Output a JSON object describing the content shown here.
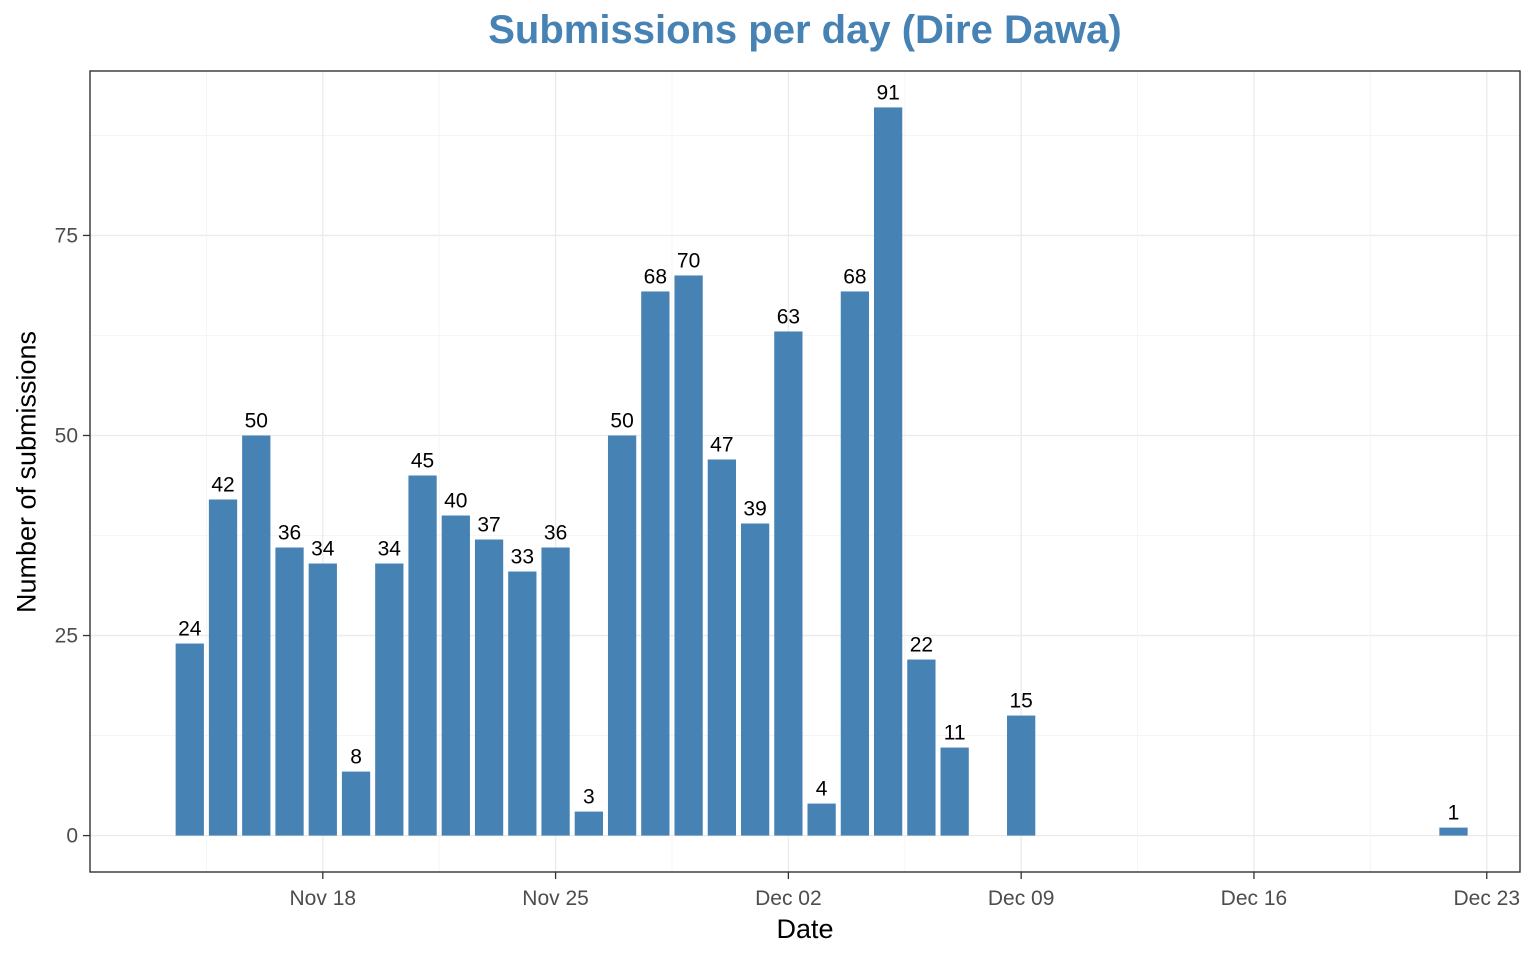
{
  "chart_data": {
    "type": "bar",
    "title": "Submissions per day (Dire Dawa)",
    "xlabel": "Date",
    "ylabel": "Number of submissions",
    "bar_color": "#4682B4",
    "title_color": "#4682B4",
    "grid": true,
    "legend": "none",
    "x_axis_type": "date",
    "xlim": [
      "2024-11-11",
      "2024-12-24"
    ],
    "ylim": [
      -4.55,
      95.55
    ],
    "x_ticks": [
      {
        "date": "2024-11-18",
        "label": "Nov 18"
      },
      {
        "date": "2024-11-25",
        "label": "Nov 25"
      },
      {
        "date": "2024-12-02",
        "label": "Dec 02"
      },
      {
        "date": "2024-12-09",
        "label": "Dec 09"
      },
      {
        "date": "2024-12-16",
        "label": "Dec 16"
      },
      {
        "date": "2024-12-23",
        "label": "Dec 23"
      }
    ],
    "y_ticks": [
      0,
      25,
      50,
      75
    ],
    "points": [
      {
        "date": "2024-11-14",
        "value": 24
      },
      {
        "date": "2024-11-15",
        "value": 42
      },
      {
        "date": "2024-11-16",
        "value": 50
      },
      {
        "date": "2024-11-17",
        "value": 36
      },
      {
        "date": "2024-11-18",
        "value": 34
      },
      {
        "date": "2024-11-19",
        "value": 8
      },
      {
        "date": "2024-11-20",
        "value": 34
      },
      {
        "date": "2024-11-21",
        "value": 45
      },
      {
        "date": "2024-11-22",
        "value": 40
      },
      {
        "date": "2024-11-23",
        "value": 37
      },
      {
        "date": "2024-11-24",
        "value": 33
      },
      {
        "date": "2024-11-25",
        "value": 36
      },
      {
        "date": "2024-11-26",
        "value": 3
      },
      {
        "date": "2024-11-27",
        "value": 50
      },
      {
        "date": "2024-11-28",
        "value": 68
      },
      {
        "date": "2024-11-29",
        "value": 70
      },
      {
        "date": "2024-11-30",
        "value": 47
      },
      {
        "date": "2024-12-01",
        "value": 39
      },
      {
        "date": "2024-12-02",
        "value": 63
      },
      {
        "date": "2024-12-03",
        "value": 4
      },
      {
        "date": "2024-12-04",
        "value": 68
      },
      {
        "date": "2024-12-05",
        "value": 91
      },
      {
        "date": "2024-12-06",
        "value": 22
      },
      {
        "date": "2024-12-07",
        "value": 11
      },
      {
        "date": "2024-12-09",
        "value": 15
      },
      {
        "date": "2024-12-22",
        "value": 1
      }
    ]
  }
}
